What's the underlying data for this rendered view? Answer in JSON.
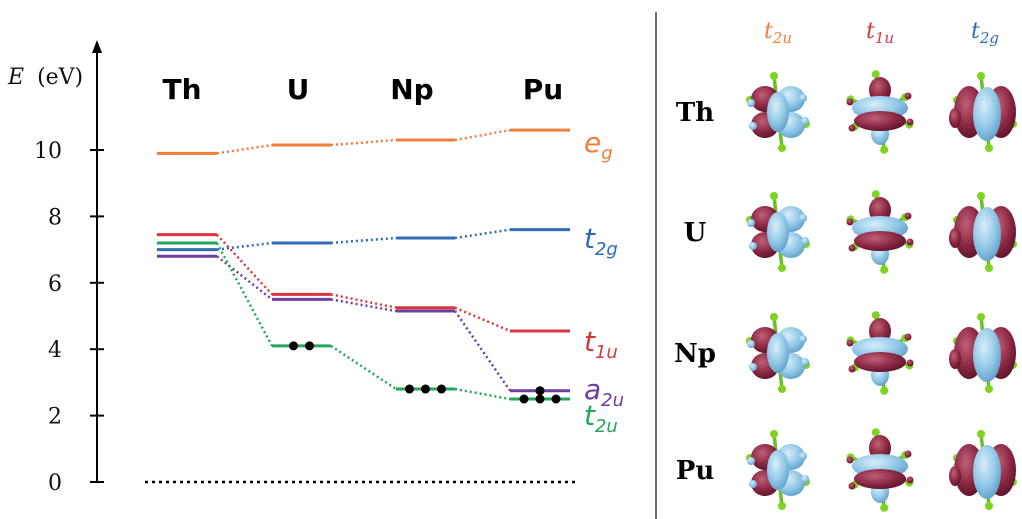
{
  "axis": {
    "label_symbol": "E",
    "label_unit": "(eV)",
    "ticks": [
      "0",
      "2",
      "4",
      "6",
      "8",
      "10"
    ],
    "tick_values": [
      0,
      2,
      4,
      6,
      8,
      10
    ],
    "range": [
      0,
      12
    ]
  },
  "elements": [
    "Th",
    "U",
    "Np",
    "Pu"
  ],
  "levels": [
    {
      "id": "eg",
      "main": "e",
      "sub": "g",
      "color": "#f07d3c",
      "values": [
        9.9,
        10.15,
        10.3,
        10.6
      ]
    },
    {
      "id": "t2g",
      "main": "t",
      "sub": "2g",
      "color": "#2f6db5",
      "values": [
        7.0,
        7.2,
        7.35,
        7.6
      ]
    },
    {
      "id": "t1u",
      "main": "t",
      "sub": "1u",
      "color": "#d9363b",
      "values": [
        7.45,
        5.65,
        5.25,
        4.55
      ]
    },
    {
      "id": "a2u",
      "main": "a",
      "sub": "2u",
      "color": "#6e3fa0",
      "values": [
        6.8,
        5.5,
        5.15,
        2.75
      ]
    },
    {
      "id": "t2u",
      "main": "t",
      "sub": "2u",
      "color": "#22a65a",
      "values": [
        7.2,
        4.1,
        2.8,
        2.5
      ]
    }
  ],
  "electrons": [
    {
      "element": "U",
      "level": "t2u",
      "count": 2
    },
    {
      "element": "Np",
      "level": "t2u",
      "count": 3
    },
    {
      "element": "Pu",
      "level": "a2u",
      "count": 1
    },
    {
      "element": "Pu",
      "level": "t2u",
      "count": 3
    }
  ],
  "orbital_panel": {
    "columns": [
      {
        "main": "t",
        "sub": "2u",
        "color": "#f07d3c"
      },
      {
        "main": "t",
        "sub": "1u",
        "color": "#d9363b"
      },
      {
        "main": "t",
        "sub": "2g",
        "color": "#2f6db5"
      }
    ],
    "rows": [
      "Th",
      "U",
      "Np",
      "Pu"
    ],
    "colors": {
      "positive": "#8fc6e6",
      "negative": "#8a2742",
      "ligand_atom": "#7ed321",
      "ligand_bond": "#6cbf2a"
    }
  }
}
